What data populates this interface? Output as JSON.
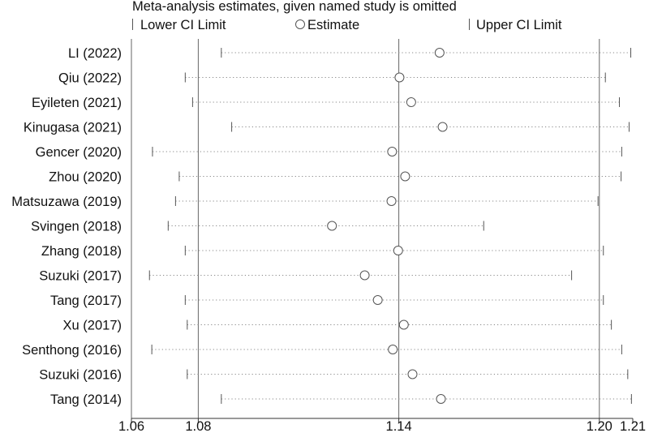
{
  "chart_data": {
    "type": "scatter",
    "title": "Meta-analysis estimates, given named study is omitted",
    "legend": {
      "placement": "top",
      "entries": [
        "Lower CI Limit",
        "Estimate",
        "Upper CI Limit"
      ]
    },
    "xlim": [
      1.06,
      1.21
    ],
    "x_ticks": [
      {
        "value": 1.06,
        "label": "1.06"
      },
      {
        "value": 1.08,
        "label": "1.08"
      },
      {
        "value": 1.14,
        "label": "1.14"
      },
      {
        "value": 1.2,
        "label": "1.20"
      },
      {
        "value": 1.21,
        "label": "1.21"
      }
    ],
    "reference_lines": [
      1.08,
      1.14,
      1.2
    ],
    "studies": [
      {
        "name": "LI (2022)",
        "lower": 1.0869,
        "estimate": 1.1522,
        "upper": 1.2094
      },
      {
        "name": "Qiu (2022)",
        "lower": 1.0761,
        "estimate": 1.1402,
        "upper": 1.2018
      },
      {
        "name": "Eyileten (2021)",
        "lower": 1.0783,
        "estimate": 1.1437,
        "upper": 1.206
      },
      {
        "name": "Kinugasa (2021)",
        "lower": 1.09,
        "estimate": 1.1531,
        "upper": 1.2089
      },
      {
        "name": "Gencer (2020)",
        "lower": 1.0663,
        "estimate": 1.138,
        "upper": 1.2067
      },
      {
        "name": "Zhou (2020)",
        "lower": 1.0743,
        "estimate": 1.1419,
        "upper": 1.2065
      },
      {
        "name": "Matsuzawa (2019)",
        "lower": 1.0732,
        "estimate": 1.1378,
        "upper": 1.1996
      },
      {
        "name": "Svingen (2018)",
        "lower": 1.071,
        "estimate": 1.12,
        "upper": 1.1654
      },
      {
        "name": "Zhang (2018)",
        "lower": 1.0761,
        "estimate": 1.1398,
        "upper": 1.2012
      },
      {
        "name": "Suzuki (2017)",
        "lower": 1.0654,
        "estimate": 1.1298,
        "upper": 1.1917
      },
      {
        "name": "Tang (2017)",
        "lower": 1.0761,
        "estimate": 1.1337,
        "upper": 1.2012
      },
      {
        "name": "Xu (2017)",
        "lower": 1.0767,
        "estimate": 1.1415,
        "upper": 1.2036
      },
      {
        "name": "Senthong (2016)",
        "lower": 1.0661,
        "estimate": 1.1382,
        "upper": 1.2067
      },
      {
        "name": "Suzuki (2016)",
        "lower": 1.0767,
        "estimate": 1.1441,
        "upper": 1.2085
      },
      {
        "name": "Tang (2014)",
        "lower": 1.0869,
        "estimate": 1.1526,
        "upper": 1.2096
      }
    ]
  }
}
